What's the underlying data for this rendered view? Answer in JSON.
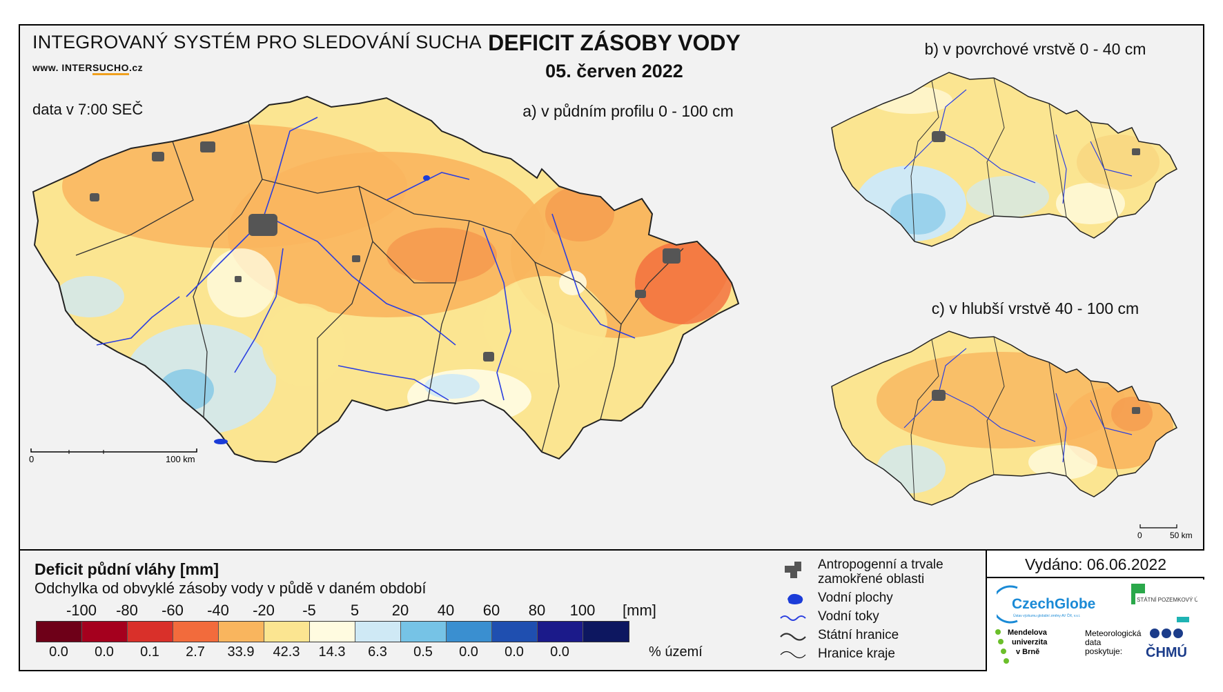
{
  "header": {
    "system_title": "INTEGROVANÝ SYSTÉM PRO SLEDOVÁNÍ SUCHA",
    "url_prefix": "www. INTER",
    "url_highlight": "SUCHO",
    "url_suffix": ".cz",
    "data_time": "data v 7:00 SEČ",
    "main_title": "DEFICIT ZÁSOBY VODY",
    "date": "05. červen 2022"
  },
  "maps": {
    "a_label": "a) v půdním profilu 0 - 100 cm",
    "b_label": "b) v povrchové vrstvě 0 - 40 cm",
    "c_label": "c) v hlubší vrstvě 40 - 100 cm",
    "scale_a_zero": "0",
    "scale_a_end": "100 km",
    "scale_c_zero": "0",
    "scale_c_end": "50 km"
  },
  "legend": {
    "title": "Deficit půdní vláhy  [mm]",
    "subtitle": "Odchylka od obvyklé zásoby vody v půdě v daném období",
    "unit_mm": "[mm]",
    "unit_pct": "% území",
    "ticks": [
      "-100",
      "-80",
      "-60",
      "-40",
      "-20",
      "-5",
      "5",
      "20",
      "40",
      "60",
      "80",
      "100"
    ],
    "colors": [
      "#6e0018",
      "#a5001e",
      "#d9302a",
      "#f26b3c",
      "#f9b55e",
      "#fbe591",
      "#fffbe0",
      "#cfe9f5",
      "#76c3e6",
      "#3a8fd0",
      "#1f4fb0",
      "#1b1a8a",
      "#0d1760"
    ],
    "percentages": [
      "0.0",
      "0.0",
      "0.1",
      "2.7",
      "33.9",
      "42.3",
      "14.3",
      "6.3",
      "0.5",
      "0.0",
      "0.0",
      "0.0"
    ]
  },
  "map_legend": {
    "anthropogenic": "Antropogenní a trvale zamokřené oblasti",
    "water_bodies": "Vodní plochy",
    "rivers": "Vodní toky",
    "state_border": "Státní hranice",
    "region_border": "Hranice kraje"
  },
  "issued": "Vydáno: 06.06.2022",
  "logos": {
    "czechglobe": "CzechGlobe",
    "czechglobe_sub": "Ústav výzkumu globální změny AV ČR, v.v.i.",
    "spu": "STÁTNÍ POZEMKOVÝ ÚŘAD",
    "mendel_1": "Mendelova",
    "mendel_2": "univerzita",
    "mendel_3": "v Brně",
    "chmi_prefix_1": "Meteorologická",
    "chmi_prefix_2": "data",
    "chmi_prefix_3": "poskytuje:",
    "chmi": "ČHMÚ"
  }
}
